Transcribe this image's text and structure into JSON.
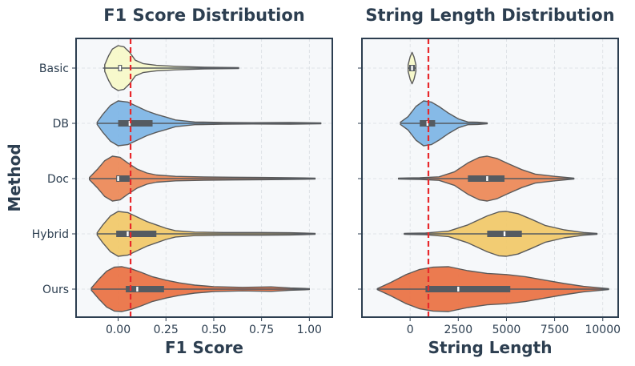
{
  "figure": {
    "ylabel": "Method",
    "categories": [
      "Basic",
      "DB",
      "Doc",
      "Hybrid",
      "Ours"
    ],
    "colors": {
      "Basic": "#f7f9c9",
      "DB": "#7fb6e6",
      "Doc": "#ec8a5a",
      "Hybrid": "#f1c96c",
      "Ours": "#ea7447"
    },
    "outline_color": "#5a5a5a",
    "ref_line_color": "#e8282b",
    "panel_bg": "#f6f8fa",
    "frame_color": "#2c3e50",
    "title_color": "#2c3e50"
  },
  "chart_data": [
    {
      "type": "violin",
      "title": "F1 Score Distribution",
      "xlabel": "F1 Score",
      "xlim": [
        -0.22,
        1.12
      ],
      "xticks": [
        0.0,
        0.25,
        0.5,
        0.75,
        1.0
      ],
      "xtick_labels": [
        "0.00",
        "0.25",
        "0.50",
        "0.75",
        "1.00"
      ],
      "reference_line": 0.065,
      "series": [
        {
          "name": "Basic",
          "min": -0.08,
          "q1": 0.0,
          "median": 0.01,
          "q3": 0.02,
          "max": 0.63,
          "profile": [
            [
              -0.07,
              0.15
            ],
            [
              -0.05,
              0.55
            ],
            [
              -0.03,
              0.85
            ],
            [
              0.0,
              1.0
            ],
            [
              0.03,
              0.95
            ],
            [
              0.06,
              0.7
            ],
            [
              0.09,
              0.35
            ],
            [
              0.13,
              0.2
            ],
            [
              0.2,
              0.12
            ],
            [
              0.3,
              0.08
            ],
            [
              0.45,
              0.04
            ],
            [
              0.63,
              0.02
            ]
          ]
        },
        {
          "name": "DB",
          "min": -0.11,
          "q1": 0.0,
          "median": 0.06,
          "q3": 0.18,
          "max": 1.06,
          "profile": [
            [
              -0.11,
              0.05
            ],
            [
              -0.08,
              0.4
            ],
            [
              -0.04,
              0.8
            ],
            [
              0.0,
              1.0
            ],
            [
              0.05,
              0.95
            ],
            [
              0.1,
              0.75
            ],
            [
              0.15,
              0.55
            ],
            [
              0.2,
              0.4
            ],
            [
              0.25,
              0.28
            ],
            [
              0.3,
              0.15
            ],
            [
              0.4,
              0.06
            ],
            [
              0.55,
              0.04
            ],
            [
              0.7,
              0.03
            ],
            [
              0.9,
              0.04
            ],
            [
              1.06,
              0.02
            ]
          ]
        },
        {
          "name": "Doc",
          "min": -0.15,
          "q1": -0.01,
          "median": 0.0,
          "q3": 0.06,
          "max": 1.03,
          "profile": [
            [
              -0.15,
              0.05
            ],
            [
              -0.11,
              0.4
            ],
            [
              -0.07,
              0.8
            ],
            [
              -0.03,
              1.0
            ],
            [
              0.01,
              0.95
            ],
            [
              0.05,
              0.7
            ],
            [
              0.1,
              0.42
            ],
            [
              0.15,
              0.25
            ],
            [
              0.2,
              0.16
            ],
            [
              0.3,
              0.1
            ],
            [
              0.45,
              0.07
            ],
            [
              0.6,
              0.06
            ],
            [
              0.75,
              0.05
            ],
            [
              0.9,
              0.04
            ],
            [
              1.03,
              0.02
            ]
          ]
        },
        {
          "name": "Hybrid",
          "min": -0.11,
          "q1": -0.01,
          "median": 0.05,
          "q3": 0.2,
          "max": 1.03,
          "profile": [
            [
              -0.11,
              0.05
            ],
            [
              -0.08,
              0.4
            ],
            [
              -0.04,
              0.8
            ],
            [
              0.0,
              1.0
            ],
            [
              0.05,
              0.95
            ],
            [
              0.1,
              0.75
            ],
            [
              0.15,
              0.55
            ],
            [
              0.2,
              0.4
            ],
            [
              0.25,
              0.25
            ],
            [
              0.3,
              0.14
            ],
            [
              0.4,
              0.08
            ],
            [
              0.55,
              0.06
            ],
            [
              0.75,
              0.06
            ],
            [
              0.9,
              0.05
            ],
            [
              1.03,
              0.02
            ]
          ]
        },
        {
          "name": "Ours",
          "min": -0.14,
          "q1": 0.04,
          "median": 0.1,
          "q3": 0.24,
          "max": 1.0,
          "profile": [
            [
              -0.14,
              0.05
            ],
            [
              -0.1,
              0.45
            ],
            [
              -0.06,
              0.8
            ],
            [
              -0.02,
              0.98
            ],
            [
              0.02,
              1.0
            ],
            [
              0.07,
              0.9
            ],
            [
              0.12,
              0.75
            ],
            [
              0.18,
              0.55
            ],
            [
              0.25,
              0.4
            ],
            [
              0.32,
              0.28
            ],
            [
              0.4,
              0.18
            ],
            [
              0.5,
              0.11
            ],
            [
              0.65,
              0.08
            ],
            [
              0.8,
              0.1
            ],
            [
              0.9,
              0.05
            ],
            [
              1.0,
              0.02
            ]
          ]
        }
      ]
    },
    {
      "type": "violin",
      "title": "String Length Distribution",
      "xlabel": "String Length",
      "xlim": [
        -2500,
        10800
      ],
      "xticks": [
        0,
        2500,
        5000,
        7500,
        10000
      ],
      "xtick_labels": [
        "0",
        "2500",
        "5000",
        "7500",
        "10000"
      ],
      "reference_line": 950,
      "series": [
        {
          "name": "Basic",
          "min": -100,
          "q1": -50,
          "median": 100,
          "q3": 250,
          "max": 300,
          "profile": [
            [
              -100,
              0.15
            ],
            [
              0,
              0.5
            ],
            [
              100,
              0.7
            ],
            [
              200,
              0.5
            ],
            [
              300,
              0.15
            ]
          ]
        },
        {
          "name": "DB",
          "min": -500,
          "q1": 500,
          "median": 900,
          "q3": 1300,
          "max": 4000,
          "profile": [
            [
              -500,
              0.05
            ],
            [
              -100,
              0.3
            ],
            [
              300,
              0.75
            ],
            [
              700,
              1.0
            ],
            [
              1100,
              0.95
            ],
            [
              1500,
              0.75
            ],
            [
              2000,
              0.45
            ],
            [
              2500,
              0.2
            ],
            [
              3000,
              0.06
            ],
            [
              3500,
              0.05
            ],
            [
              4000,
              0.02
            ]
          ]
        },
        {
          "name": "Doc",
          "min": -600,
          "q1": 3000,
          "median": 4000,
          "q3": 4900,
          "max": 8500,
          "profile": [
            [
              -600,
              0.02
            ],
            [
              500,
              0.04
            ],
            [
              1500,
              0.08
            ],
            [
              2300,
              0.3
            ],
            [
              3000,
              0.7
            ],
            [
              3600,
              0.95
            ],
            [
              4000,
              1.0
            ],
            [
              4500,
              0.9
            ],
            [
              5000,
              0.7
            ],
            [
              5800,
              0.4
            ],
            [
              6500,
              0.2
            ],
            [
              7500,
              0.1
            ],
            [
              8500,
              0.02
            ]
          ]
        },
        {
          "name": "Hybrid",
          "min": -300,
          "q1": 4000,
          "median": 4900,
          "q3": 5800,
          "max": 9700,
          "profile": [
            [
              -300,
              0.02
            ],
            [
              800,
              0.04
            ],
            [
              2000,
              0.12
            ],
            [
              3000,
              0.4
            ],
            [
              4000,
              0.8
            ],
            [
              4600,
              0.98
            ],
            [
              5000,
              1.0
            ],
            [
              5600,
              0.9
            ],
            [
              6300,
              0.65
            ],
            [
              7000,
              0.38
            ],
            [
              8000,
              0.18
            ],
            [
              9000,
              0.06
            ],
            [
              9700,
              0.02
            ]
          ]
        },
        {
          "name": "Ours",
          "min": -1700,
          "q1": 800,
          "median": 2500,
          "q3": 5200,
          "max": 10300,
          "profile": [
            [
              -1700,
              0.02
            ],
            [
              -1000,
              0.3
            ],
            [
              -200,
              0.65
            ],
            [
              500,
              0.88
            ],
            [
              1200,
              0.98
            ],
            [
              2000,
              1.0
            ],
            [
              3000,
              0.82
            ],
            [
              4000,
              0.7
            ],
            [
              5000,
              0.65
            ],
            [
              6000,
              0.55
            ],
            [
              7000,
              0.4
            ],
            [
              8000,
              0.25
            ],
            [
              9000,
              0.12
            ],
            [
              10300,
              0.02
            ]
          ]
        }
      ]
    }
  ]
}
